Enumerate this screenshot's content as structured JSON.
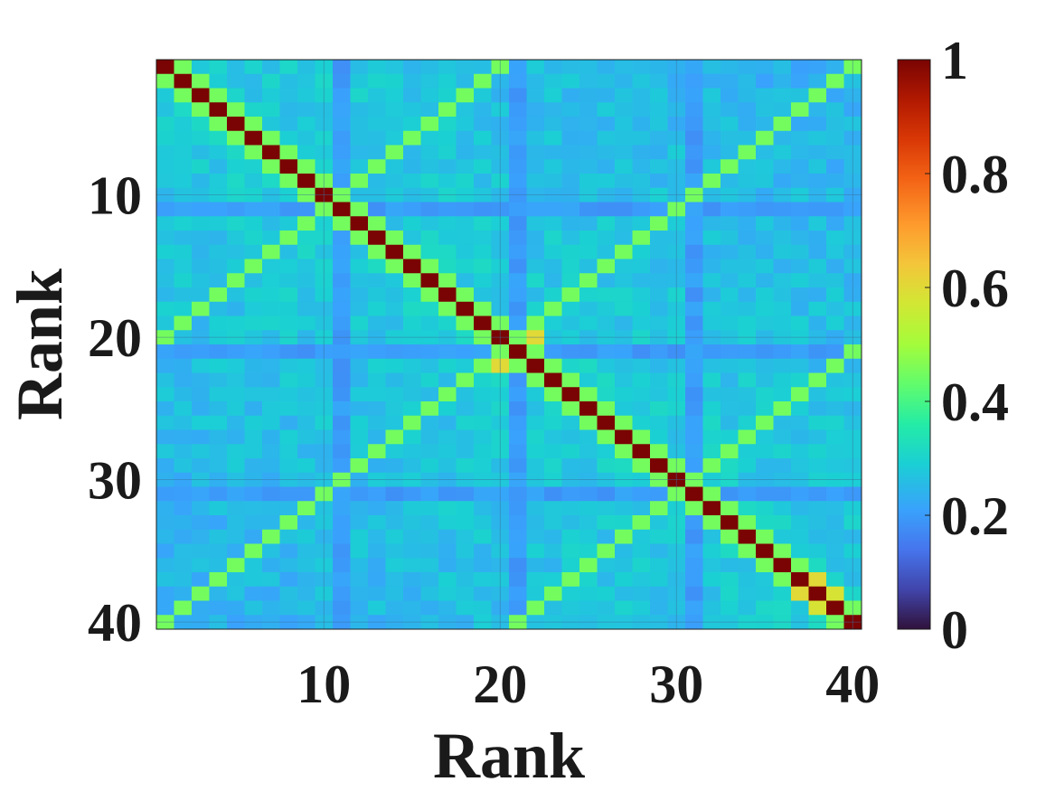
{
  "chart_data": {
    "type": "heatmap",
    "title": "",
    "xlabel": "Rank",
    "ylabel": "Rank",
    "x": [
      1,
      40
    ],
    "y": [
      1,
      40
    ],
    "x_ticks": [
      "10",
      "20",
      "30",
      "40"
    ],
    "y_ticks": [
      "10",
      "20",
      "30",
      "40"
    ],
    "colorbar": {
      "colormap": "turbo",
      "range": [
        0,
        1
      ],
      "ticks": [
        "0",
        "0.2",
        "0.4",
        "0.6",
        "0.8",
        "1"
      ]
    },
    "pattern": {
      "diagonal_value": 1.0,
      "near_diagonal_value": 0.45,
      "anti_diagonal_value": 0.45,
      "block_anti_diagonals": [
        21,
        41,
        61
      ],
      "background_range": [
        0.2,
        0.32
      ],
      "low_rows_cols": [
        11,
        21,
        31
      ],
      "low_value": 0.18,
      "peak_cells": [
        [
          20,
          22,
          0.6
        ],
        [
          22,
          20,
          0.6
        ],
        [
          38,
          37,
          0.6
        ],
        [
          37,
          38,
          0.6
        ],
        [
          39,
          38,
          0.58
        ],
        [
          38,
          39,
          0.58
        ]
      ]
    },
    "grid": true,
    "colors": {
      "axis": "#1a1a1a",
      "grid": "#3a6f9a"
    }
  }
}
